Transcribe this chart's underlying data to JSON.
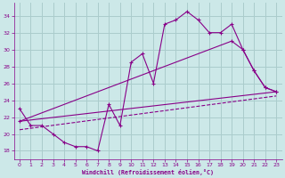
{
  "xlabel": "Windchill (Refroidissement éolien,°C)",
  "bg_color": "#cce8e8",
  "grid_color": "#aacccc",
  "line_color": "#880088",
  "xlim": [
    -0.5,
    23.5
  ],
  "ylim": [
    17,
    35.5
  ],
  "xticks": [
    0,
    1,
    2,
    3,
    4,
    5,
    6,
    7,
    8,
    9,
    10,
    11,
    12,
    13,
    14,
    15,
    16,
    17,
    18,
    19,
    20,
    21,
    22,
    23
  ],
  "yticks": [
    18,
    20,
    22,
    24,
    26,
    28,
    30,
    32,
    34
  ],
  "curve1_x": [
    0,
    1,
    2,
    3,
    4,
    5,
    6,
    7,
    8,
    9,
    10,
    11,
    12,
    13,
    14,
    15,
    16,
    17,
    18,
    19,
    20,
    21,
    22,
    23
  ],
  "curve1_y": [
    23,
    21,
    21,
    20,
    19,
    18.5,
    18.5,
    18,
    23.5,
    21,
    28.5,
    29.5,
    26,
    33,
    33.5,
    34.5,
    33.5,
    32,
    32,
    33,
    30,
    27.5,
    25.5,
    25
  ],
  "curve2_x": [
    0,
    19,
    20,
    21,
    22,
    23
  ],
  "curve2_y": [
    21.5,
    31.0,
    30.0,
    27.5,
    25.5,
    25.0
  ],
  "curve3_x": [
    0,
    23
  ],
  "curve3_y": [
    21.5,
    25.0
  ],
  "curve4_x": [
    0,
    23
  ],
  "curve4_y": [
    20.5,
    24.5
  ]
}
